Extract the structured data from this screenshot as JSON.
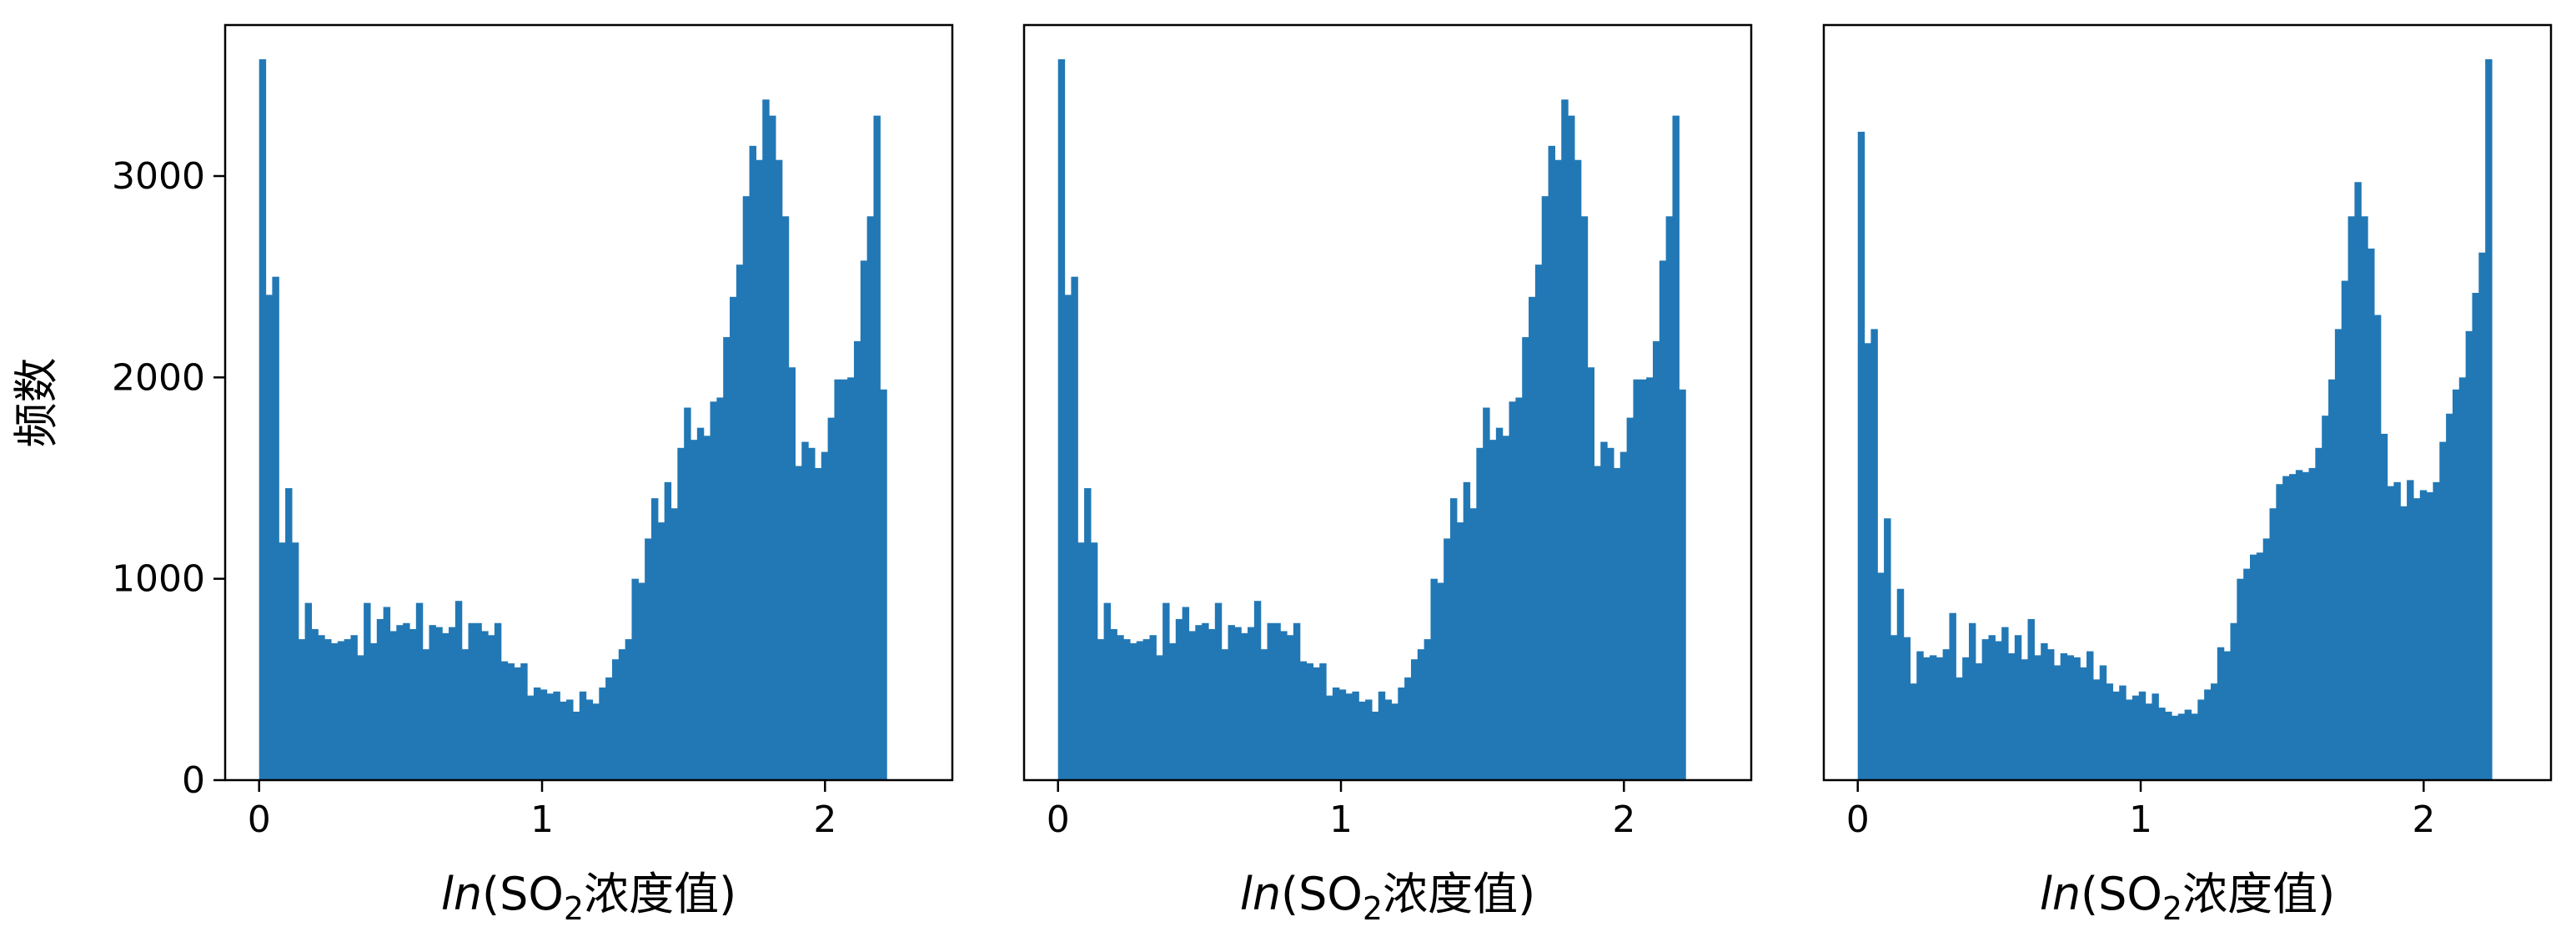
{
  "style": {
    "bar_color": "#2278b5",
    "frame_color": "#000000",
    "background": "#ffffff"
  },
  "chart_data": [
    {
      "type": "bar",
      "panel": "left",
      "xlabel": {
        "italic": "ln",
        "prefix": "(SO",
        "subscript": "2",
        "suffix": "浓度值)"
      },
      "ylabel": "频数",
      "xlim": [
        -0.12,
        2.45
      ],
      "ylim": [
        0,
        3750
      ],
      "xticks": [
        0,
        1,
        2
      ],
      "xtick_labels": [
        "0",
        "1",
        "2"
      ],
      "yticks": [
        0,
        1000,
        2000,
        3000
      ],
      "ytick_labels": [
        "0",
        "1000",
        "2000",
        "3000"
      ],
      "bin_start": 0,
      "bin_width": 0.0231,
      "values": [
        3580,
        2410,
        2500,
        1180,
        1450,
        1180,
        700,
        880,
        750,
        720,
        700,
        680,
        690,
        700,
        720,
        620,
        880,
        680,
        800,
        860,
        740,
        770,
        780,
        750,
        880,
        650,
        770,
        760,
        730,
        760,
        890,
        650,
        780,
        780,
        740,
        720,
        780,
        590,
        580,
        560,
        580,
        420,
        460,
        450,
        430,
        440,
        390,
        400,
        340,
        440,
        400,
        380,
        460,
        510,
        600,
        650,
        700,
        1000,
        980,
        1200,
        1400,
        1280,
        1480,
        1350,
        1650,
        1850,
        1690,
        1750,
        1710,
        1880,
        1900,
        2200,
        2400,
        2560,
        2900,
        3150,
        3080,
        3380,
        3300,
        3080,
        2800,
        2050,
        1560,
        1680,
        1650,
        1550,
        1630,
        1800,
        1990,
        1990,
        2000,
        2180,
        2580,
        2800,
        3300,
        1940
      ]
    },
    {
      "type": "bar",
      "panel": "middle",
      "xlabel": {
        "italic": "ln",
        "prefix": "(SO",
        "subscript": "2",
        "suffix": "浓度值)"
      },
      "xlim": [
        -0.12,
        2.45
      ],
      "ylim": [
        0,
        3750
      ],
      "xticks": [
        0,
        1,
        2
      ],
      "xtick_labels": [
        "0",
        "1",
        "2"
      ],
      "bin_start": 0,
      "bin_width": 0.0231,
      "values": [
        3580,
        2410,
        2500,
        1180,
        1450,
        1180,
        700,
        880,
        750,
        720,
        700,
        680,
        690,
        700,
        720,
        620,
        880,
        680,
        800,
        860,
        740,
        770,
        780,
        750,
        880,
        650,
        770,
        760,
        730,
        760,
        890,
        650,
        780,
        780,
        740,
        720,
        780,
        590,
        580,
        560,
        580,
        420,
        460,
        450,
        430,
        440,
        390,
        400,
        340,
        440,
        400,
        380,
        460,
        510,
        600,
        650,
        700,
        1000,
        980,
        1200,
        1400,
        1280,
        1480,
        1350,
        1650,
        1850,
        1690,
        1750,
        1710,
        1880,
        1900,
        2200,
        2400,
        2560,
        2900,
        3150,
        3080,
        3380,
        3300,
        3080,
        2800,
        2050,
        1560,
        1680,
        1650,
        1550,
        1630,
        1800,
        1990,
        1990,
        2000,
        2180,
        2580,
        2800,
        3300,
        1940
      ]
    },
    {
      "type": "bar",
      "panel": "right",
      "xlabel": {
        "italic": "ln",
        "prefix": "(SO",
        "subscript": "2",
        "suffix": "浓度值)"
      },
      "xlim": [
        -0.12,
        2.45
      ],
      "ylim": [
        0,
        3750
      ],
      "xticks": [
        0,
        1,
        2
      ],
      "xtick_labels": [
        "0",
        "1",
        "2"
      ],
      "bin_start": 0,
      "bin_width": 0.0231,
      "values": [
        3220,
        2170,
        2240,
        1030,
        1300,
        720,
        950,
        710,
        480,
        640,
        610,
        620,
        610,
        650,
        830,
        510,
        610,
        780,
        580,
        700,
        720,
        690,
        760,
        630,
        720,
        600,
        800,
        620,
        680,
        650,
        570,
        630,
        620,
        610,
        560,
        640,
        500,
        570,
        480,
        440,
        470,
        400,
        420,
        440,
        380,
        430,
        360,
        340,
        320,
        330,
        350,
        330,
        400,
        450,
        480,
        660,
        640,
        780,
        1000,
        1050,
        1120,
        1130,
        1200,
        1350,
        1470,
        1510,
        1520,
        1540,
        1530,
        1550,
        1650,
        1810,
        1990,
        2240,
        2480,
        2800,
        2970,
        2800,
        2640,
        2310,
        1720,
        1460,
        1480,
        1360,
        1490,
        1400,
        1440,
        1430,
        1480,
        1680,
        1820,
        1940,
        2000,
        2230,
        2420,
        2620,
        3580
      ]
    }
  ]
}
